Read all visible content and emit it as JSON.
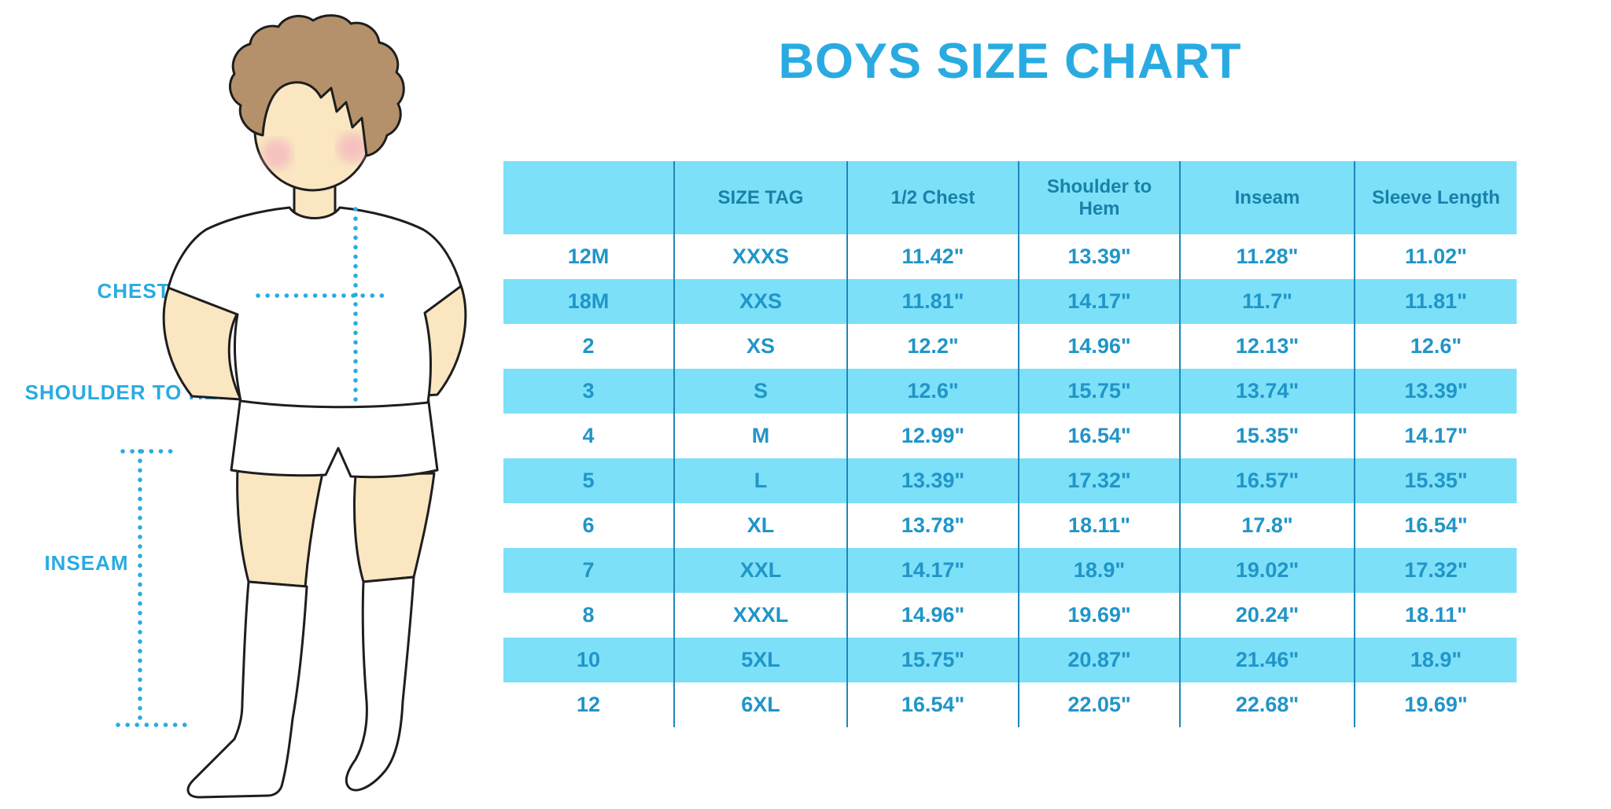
{
  "title": "BOYS SIZE CHART",
  "figure": {
    "description": "illustration of a boy in white t-shirt, shorts and knee socks with dotted measurement guides",
    "labels": {
      "chest": "CHEST",
      "shoulder_to_hem": "SHOULDER TO HEM",
      "inseam": "INSEAM"
    }
  },
  "chart_data": {
    "type": "table",
    "title": "BOYS SIZE CHART",
    "unit": "inches",
    "columns": [
      "",
      "SIZE TAG",
      "1/2 Chest",
      "Shoulder to Hem",
      "Inseam",
      "Sleeve Length"
    ],
    "rows": [
      [
        "12M",
        "XXXS",
        "11.42\"",
        "13.39\"",
        "11.28\"",
        "11.02\""
      ],
      [
        "18M",
        "XXS",
        "11.81\"",
        "14.17\"",
        "11.7\"",
        "11.81\""
      ],
      [
        "2",
        "XS",
        "12.2\"",
        "14.96\"",
        "12.13\"",
        "12.6\""
      ],
      [
        "3",
        "S",
        "12.6\"",
        "15.75\"",
        "13.74\"",
        "13.39\""
      ],
      [
        "4",
        "M",
        "12.99\"",
        "16.54\"",
        "15.35\"",
        "14.17\""
      ],
      [
        "5",
        "L",
        "13.39\"",
        "17.32\"",
        "16.57\"",
        "15.35\""
      ],
      [
        "6",
        "XL",
        "13.78\"",
        "18.11\"",
        "17.8\"",
        "16.54\""
      ],
      [
        "7",
        "XXL",
        "14.17\"",
        "18.9\"",
        "19.02\"",
        "17.32\""
      ],
      [
        "8",
        "XXXL",
        "14.96\"",
        "19.69\"",
        "20.24\"",
        "18.11\""
      ],
      [
        "10",
        "5XL",
        "15.75\"",
        "20.87\"",
        "21.46\"",
        "18.9\""
      ],
      [
        "12",
        "6XL",
        "16.54\"",
        "22.05\"",
        "22.68\"",
        "19.69\""
      ]
    ],
    "stripe_pattern": "alternating white and light blue rows, first row white",
    "layout": {
      "grid": false,
      "legend": "none"
    }
  },
  "colors": {
    "accent": "#29ABE2",
    "table_stripe": "#7CE0F8",
    "table_value_text": "#2095C8",
    "table_header_text": "#1981A9",
    "divider": "#1D87B8",
    "skin": "#FAE6C1",
    "hair": "#B5916B",
    "cheek": "#F3A9BD",
    "outline": "#1E1E1E"
  }
}
